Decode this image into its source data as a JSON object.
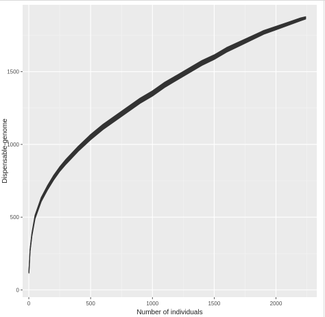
{
  "chart_data": {
    "type": "line",
    "title": "",
    "xlabel": "Number of individuals",
    "ylabel": "Dispensable-genome",
    "xlim": [
      -50,
      2330
    ],
    "ylim": [
      -50,
      1960
    ],
    "x_ticks": [
      0,
      500,
      1000,
      1500,
      2000
    ],
    "y_ticks": [
      0,
      500,
      1000,
      1500
    ],
    "x_tick_labels": [
      "0",
      "500",
      "1000",
      "1500",
      "2000"
    ],
    "y_tick_labels": [
      "0",
      "500",
      "1000",
      "1500"
    ],
    "grid": true,
    "legend": "none",
    "series": [
      {
        "x": [
          1,
          10,
          25,
          50,
          100,
          150,
          200,
          250,
          300,
          400,
          500,
          600,
          700,
          800,
          900,
          1000,
          1100,
          1200,
          1300,
          1400,
          1500,
          1600,
          1700,
          1800,
          1900,
          2000,
          2100,
          2200,
          2240
        ],
        "y": [
          120,
          270,
          380,
          500,
          620,
          700,
          770,
          830,
          880,
          970,
          1050,
          1120,
          1180,
          1240,
          1300,
          1350,
          1410,
          1460,
          1510,
          1560,
          1600,
          1650,
          1690,
          1730,
          1770,
          1800,
          1830,
          1860,
          1870
        ],
        "band_halfwidth": [
          5,
          8,
          10,
          12,
          14,
          15,
          16,
          16,
          17,
          17,
          18,
          18,
          18,
          18,
          18,
          18,
          18,
          17,
          17,
          17,
          16,
          16,
          15,
          14,
          13,
          12,
          11,
          10,
          8
        ]
      }
    ]
  },
  "colors": {
    "panel": "#ebebeb",
    "grid_major": "#ffffff",
    "grid_minor": "#f4f4f4",
    "series": "#333333",
    "tick_label": "#4d4d4d",
    "axis_title": "#1a1a1a"
  }
}
